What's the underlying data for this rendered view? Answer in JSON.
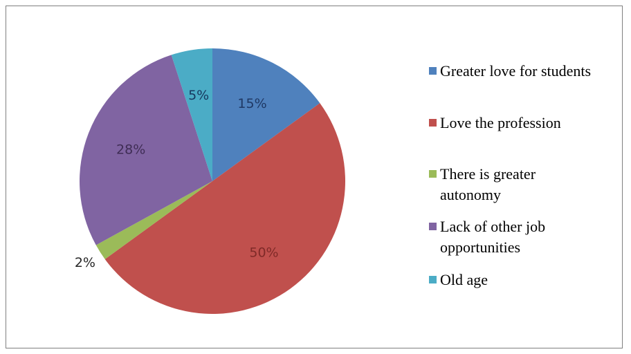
{
  "chart_data": {
    "type": "pie",
    "title": "",
    "start_angle_deg": 0,
    "direction": "clockwise",
    "legend_position": "right",
    "slices": [
      {
        "label": "Greater love for students",
        "value": 15,
        "display": "15%",
        "color": "#4f81bd",
        "label_color": "#1f3864"
      },
      {
        "label": "Love the profession",
        "value": 50,
        "display": "50%",
        "color": "#c0504d",
        "label_color": "#7f2a28"
      },
      {
        "label": "There is greater autonomy",
        "value": 2,
        "display": "2%",
        "color": "#9bbb59",
        "label_color": "#262626",
        "label_outside": true
      },
      {
        "label": "Lack of other job opportunities",
        "value": 28,
        "display": "28%",
        "color": "#8064a2",
        "label_color": "#3f2d55"
      },
      {
        "label": "Old age",
        "value": 5,
        "display": "5%",
        "color": "#4bacc6",
        "label_color": "#17375e"
      }
    ],
    "legend": [
      [
        "Greater love for students"
      ],
      [
        "Love the profession"
      ],
      [
        "There is greater",
        "autonomy"
      ],
      [
        "Lack of other job",
        "opportunities"
      ],
      [
        "Old age"
      ]
    ]
  }
}
